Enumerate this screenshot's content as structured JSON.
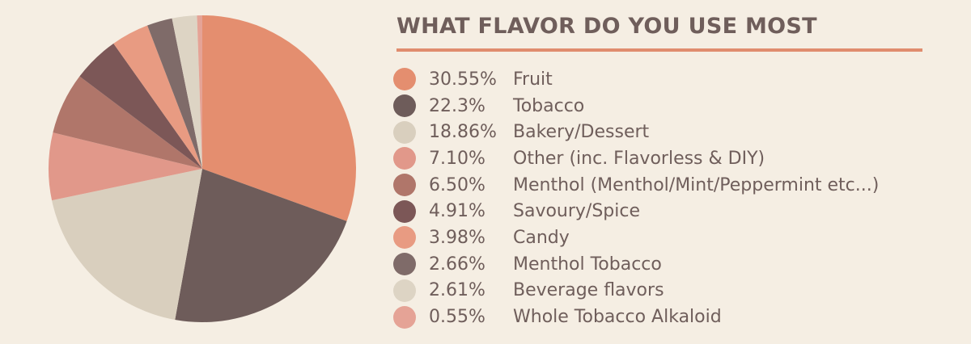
{
  "chart_data": {
    "type": "pie",
    "title": "WHAT FLAVOR DO YOU USE MOST",
    "legend_position": "right",
    "slices": [
      {
        "label": "Fruit",
        "display": "30.55%",
        "value": 30.55,
        "color": "#e48e6f"
      },
      {
        "label": "Tobacco",
        "display": "22.3%",
        "value": 22.3,
        "color": "#6e5c5a"
      },
      {
        "label": "Bakery/Dessert",
        "display": "18.86%",
        "value": 18.86,
        "color": "#d9cfbe"
      },
      {
        "label": "Other (inc. Flavorless & DIY)",
        "display": "7.10%",
        "value": 7.1,
        "color": "#e1988a"
      },
      {
        "label": "Menthol (Menthol/Mint/Peppermint etc...)",
        "display": "6.50%",
        "value": 6.5,
        "color": "#b0766a"
      },
      {
        "label": "Savoury/Spice",
        "display": "4.91%",
        "value": 4.91,
        "color": "#7c5757"
      },
      {
        "label": "Candy",
        "display": "3.98%",
        "value": 3.98,
        "color": "#e89b82"
      },
      {
        "label": "Menthol Tobacco",
        "display": "2.66%",
        "value": 2.66,
        "color": "#7f6b69"
      },
      {
        "label": "Beverage flavors",
        "display": "2.61%",
        "value": 2.61,
        "color": "#ddd4c4"
      },
      {
        "label": "Whole Tobacco Alkaloid",
        "display": "0.55%",
        "value": 0.55,
        "color": "#e5a396"
      }
    ]
  }
}
